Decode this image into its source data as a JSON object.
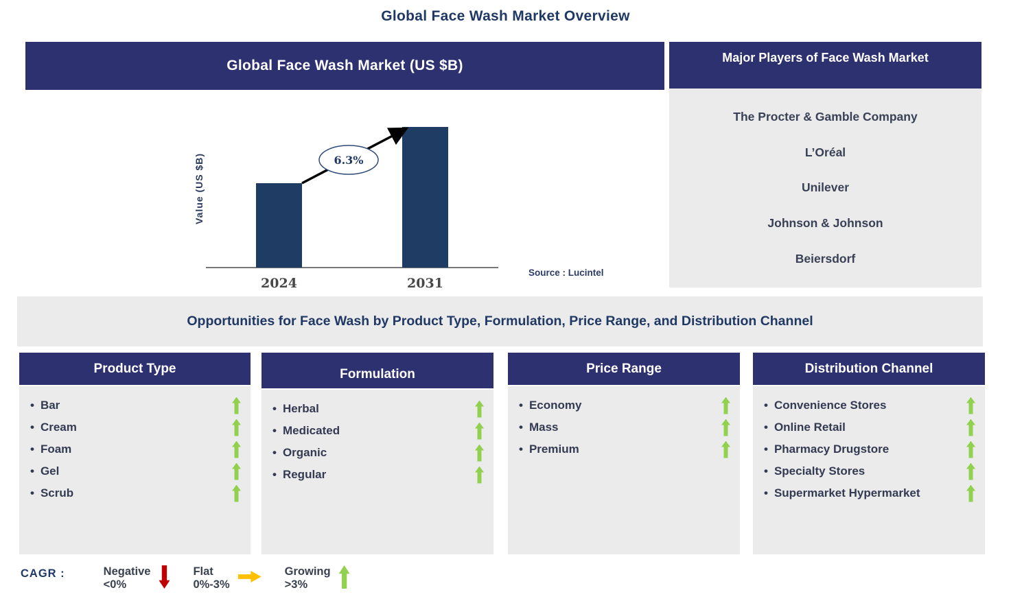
{
  "page_title": "Global Face Wash Market Overview",
  "colors": {
    "header_navy": "#2D3170",
    "bar_navy": "#1F3C64",
    "title_navy": "#1F3864",
    "panel_gray": "#EBEBEB",
    "growing_green": "#92D050",
    "negative_red": "#C00000",
    "flat_yellow": "#FFC000"
  },
  "chart_data": {
    "type": "bar",
    "title": "Global Face Wash Market (US $B)",
    "categories": [
      "2024",
      "2031"
    ],
    "values": [
      0.6,
      1.0
    ],
    "ylabel": "Value (US $B)",
    "xlabel": "",
    "annotation": "6.3%",
    "source": "Source : Lucintel",
    "bar_color": "#1F3C64",
    "grid": false,
    "legend": false
  },
  "major_players": {
    "title": "Major Players of Face Wash Market",
    "companies": [
      "The Procter & Gamble Company",
      "L’Oréal",
      "Unilever",
      "Johnson & Johnson",
      "Beiersdorf"
    ]
  },
  "opportunities": {
    "title": "Opportunities for Face Wash by Product Type, Formulation, Price Range, and Distribution Channel",
    "columns": [
      {
        "title": "Product Type",
        "items": [
          {
            "label": "Bar",
            "trend": "growing"
          },
          {
            "label": "Cream",
            "trend": "growing"
          },
          {
            "label": "Foam",
            "trend": "growing"
          },
          {
            "label": "Gel",
            "trend": "growing"
          },
          {
            "label": "Scrub",
            "trend": "growing"
          }
        ]
      },
      {
        "title": "Formulation",
        "items": [
          {
            "label": "Herbal",
            "trend": "growing"
          },
          {
            "label": "Medicated",
            "trend": "growing"
          },
          {
            "label": "Organic",
            "trend": "growing"
          },
          {
            "label": "Regular",
            "trend": "growing"
          }
        ]
      },
      {
        "title": "Price Range",
        "items": [
          {
            "label": "Economy",
            "trend": "growing"
          },
          {
            "label": "Mass",
            "trend": "growing"
          },
          {
            "label": "Premium",
            "trend": "growing"
          }
        ]
      },
      {
        "title": "Distribution Channel",
        "items": [
          {
            "label": "Convenience Stores",
            "trend": "growing"
          },
          {
            "label": "Online Retail",
            "trend": "growing"
          },
          {
            "label": "Pharmacy Drugstore",
            "trend": "growing"
          },
          {
            "label": "Specialty Stores",
            "trend": "growing"
          },
          {
            "label": "Supermarket Hypermarket",
            "trend": "growing"
          }
        ]
      }
    ]
  },
  "legend": {
    "label": "CAGR :",
    "entries": [
      {
        "name": "Negative",
        "range": "<0%",
        "arrow": "down",
        "color": "#C00000"
      },
      {
        "name": "Flat",
        "range": "0%-3%",
        "arrow": "right",
        "color": "#FFC000"
      },
      {
        "name": "Growing",
        "range": ">3%",
        "arrow": "up",
        "color": "#92D050"
      }
    ]
  }
}
